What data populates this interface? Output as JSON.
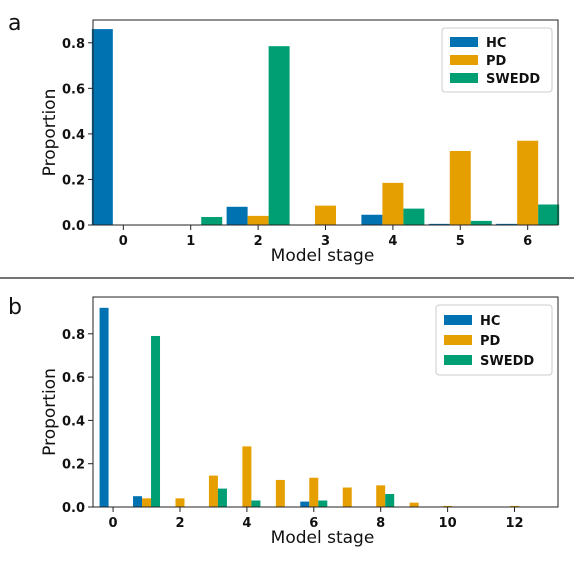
{
  "panels": [
    {
      "label": "a",
      "chart_data": {
        "type": "bar",
        "xlabel": "Model stage",
        "ylabel": "Proportion",
        "x": [
          0,
          1,
          2,
          3,
          4,
          5,
          6
        ],
        "xlim": [
          -0.45,
          6.45
        ],
        "ylim": [
          0,
          0.9
        ],
        "xticks": [
          0,
          1,
          2,
          3,
          4,
          5,
          6
        ],
        "yticks": [
          0.0,
          0.2,
          0.4,
          0.6,
          0.8
        ],
        "xtick_labels": [
          "0",
          "1",
          "2",
          "3",
          "4",
          "5",
          "6"
        ],
        "ytick_labels": [
          "0.0",
          "0.2",
          "0.4",
          "0.6",
          "0.8"
        ],
        "grid": false,
        "legend": "top-right",
        "series": [
          {
            "name": "HC",
            "color": "#0072b2",
            "values": [
              0.86,
              0.0,
              0.08,
              0.0,
              0.045,
              0.005,
              0.005
            ]
          },
          {
            "name": "PD",
            "color": "#e69f00",
            "values": [
              0.0,
              0.0,
              0.04,
              0.085,
              0.185,
              0.325,
              0.37
            ]
          },
          {
            "name": "SWEDD",
            "color": "#009e73",
            "values": [
              0.0,
              0.035,
              0.785,
              0.0,
              0.072,
              0.018,
              0.09
            ]
          }
        ]
      }
    },
    {
      "label": "b",
      "chart_data": {
        "type": "bar",
        "xlabel": "Model stage",
        "ylabel": "Proportion",
        "x": [
          0,
          1,
          2,
          3,
          4,
          5,
          6,
          7,
          8,
          9,
          10,
          11,
          12
        ],
        "xlim": [
          -0.6,
          13.3
        ],
        "ylim": [
          0,
          0.97
        ],
        "xticks": [
          0,
          2,
          4,
          6,
          8,
          10,
          12
        ],
        "yticks": [
          0.0,
          0.2,
          0.4,
          0.6,
          0.8
        ],
        "xtick_labels": [
          "0",
          "2",
          "4",
          "6",
          "8",
          "10",
          "12"
        ],
        "ytick_labels": [
          "0.0",
          "0.2",
          "0.4",
          "0.6",
          "0.8"
        ],
        "grid": false,
        "legend": "top-right",
        "series": [
          {
            "name": "HC",
            "color": "#0072b2",
            "values": [
              0.92,
              0.05,
              0.0,
              0.0,
              0.0,
              0.0,
              0.025,
              0.0,
              0.0,
              0.0,
              0.0,
              0.0,
              0.0
            ]
          },
          {
            "name": "PD",
            "color": "#e69f00",
            "values": [
              0.0,
              0.04,
              0.04,
              0.145,
              0.28,
              0.125,
              0.135,
              0.09,
              0.1,
              0.02,
              0.005,
              0.0,
              0.005
            ]
          },
          {
            "name": "SWEDD",
            "color": "#009e73",
            "values": [
              0.0,
              0.79,
              0.0,
              0.085,
              0.03,
              0.0,
              0.03,
              0.0,
              0.06,
              0.0,
              0.0,
              0.0,
              0.0
            ]
          }
        ]
      }
    }
  ]
}
